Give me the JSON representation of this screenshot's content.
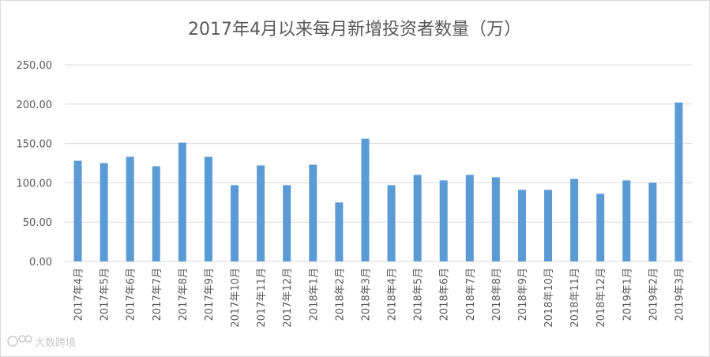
{
  "chart_data": {
    "type": "bar",
    "title": "2017年4月以来每月新增投资者数量（万）",
    "xlabel": "",
    "ylabel": "",
    "ylim": [
      0,
      250
    ],
    "yticks": [
      "0.00",
      "50.00",
      "100.00",
      "150.00",
      "200.00",
      "250.00"
    ],
    "grid": true,
    "legend": "none",
    "bar_color": "#5b9bd5",
    "categories": [
      "2017年4月",
      "2017年5月",
      "2017年6月",
      "2017年7月",
      "2017年8月",
      "2017年9月",
      "2017年10月",
      "2017年11月",
      "2017年12月",
      "2018年1月",
      "2018年2月",
      "2018年3月",
      "2018年4月",
      "2018年5月",
      "2018年6月",
      "2018年7月",
      "2018年8月",
      "2018年9月",
      "2018年10月",
      "2018年11月",
      "2018年12月",
      "2019年1月",
      "2019年2月",
      "2019年3月"
    ],
    "values": [
      128,
      125,
      133,
      121,
      151,
      133,
      97,
      122,
      97,
      123,
      75,
      156,
      97,
      110,
      103,
      110,
      107,
      91,
      91,
      105,
      86,
      103,
      100,
      202
    ]
  },
  "watermark": {
    "text": "大数跨境"
  }
}
